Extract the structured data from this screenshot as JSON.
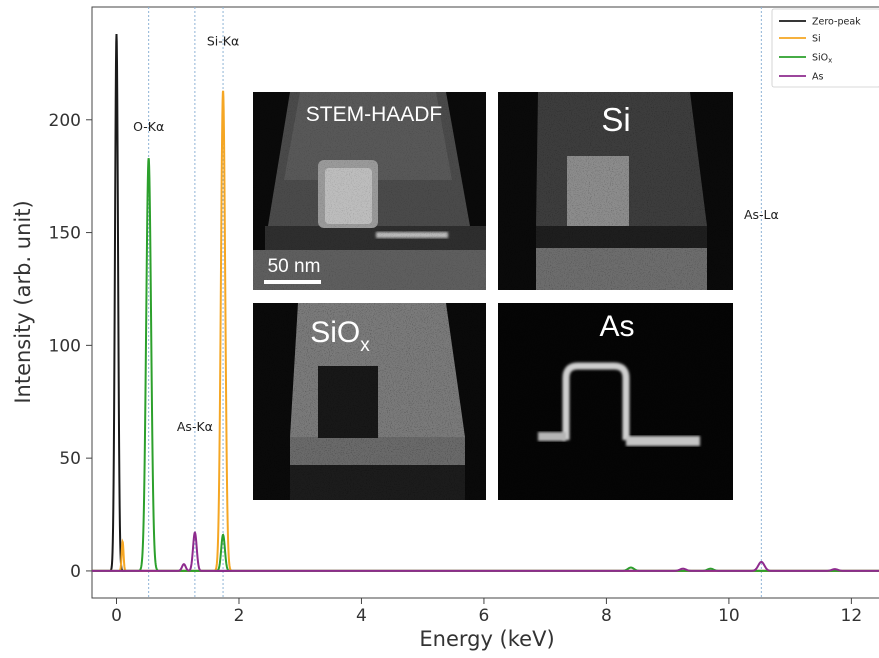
{
  "chart_data": {
    "type": "line",
    "xlabel": "Energy (keV)",
    "ylabel": "Intensity (arb. unit)",
    "xlim": [
      -0.4,
      12.5
    ],
    "ylim": [
      -12,
      250
    ],
    "xticks": [
      "0",
      "2",
      "4",
      "6",
      "8",
      "10",
      "12"
    ],
    "yticks": [
      "0",
      "50",
      "100",
      "150",
      "200"
    ],
    "grid": false,
    "legend_position": "top-right",
    "series": [
      {
        "name": "Zero-peak",
        "color": "#1a1a1a",
        "peaks": [
          {
            "x": 0.0,
            "height": 238,
            "width": 0.025
          }
        ]
      },
      {
        "name": "Si",
        "color": "#f5a623",
        "peaks": [
          {
            "x": 0.1,
            "height": 13,
            "width": 0.015
          },
          {
            "x": 1.74,
            "height": 213,
            "width": 0.035
          }
        ]
      },
      {
        "name": "SiOx",
        "color": "#2ca02c",
        "peaks": [
          {
            "x": 0.525,
            "height": 183,
            "width": 0.04
          },
          {
            "x": 1.74,
            "height": 16,
            "width": 0.03
          },
          {
            "x": 8.4,
            "height": 1.5,
            "width": 0.05
          },
          {
            "x": 9.7,
            "height": 1,
            "width": 0.05
          }
        ]
      },
      {
        "name": "As",
        "color": "#8e2b8e",
        "peaks": [
          {
            "x": 1.1,
            "height": 3,
            "width": 0.03
          },
          {
            "x": 1.28,
            "height": 17,
            "width": 0.03
          },
          {
            "x": 9.25,
            "height": 1,
            "width": 0.05
          },
          {
            "x": 10.53,
            "height": 4,
            "width": 0.05
          },
          {
            "x": 11.73,
            "height": 0.8,
            "width": 0.05
          }
        ]
      }
    ],
    "reference_lines": [
      {
        "x": 0.525,
        "label": "O-Kα",
        "label_y": 195
      },
      {
        "x": 1.28,
        "label": "As-Kα",
        "label_y": 62
      },
      {
        "x": 1.74,
        "label": "Si-Kα",
        "label_y": 233
      },
      {
        "x": 10.53,
        "label": "As-Lα",
        "label_y": 156
      }
    ],
    "legend": {
      "zero_peak": "Zero-peak",
      "si": "Si",
      "siox_main": "SiO",
      "siox_sub": "x",
      "as": "As"
    }
  },
  "insets": {
    "stem": {
      "label": "STEM-HAADF",
      "scale_bar": "50 nm"
    },
    "si": {
      "label": "Si"
    },
    "siox": {
      "label": "SiO",
      "label_sub": "x"
    },
    "as": {
      "label": "As"
    }
  }
}
